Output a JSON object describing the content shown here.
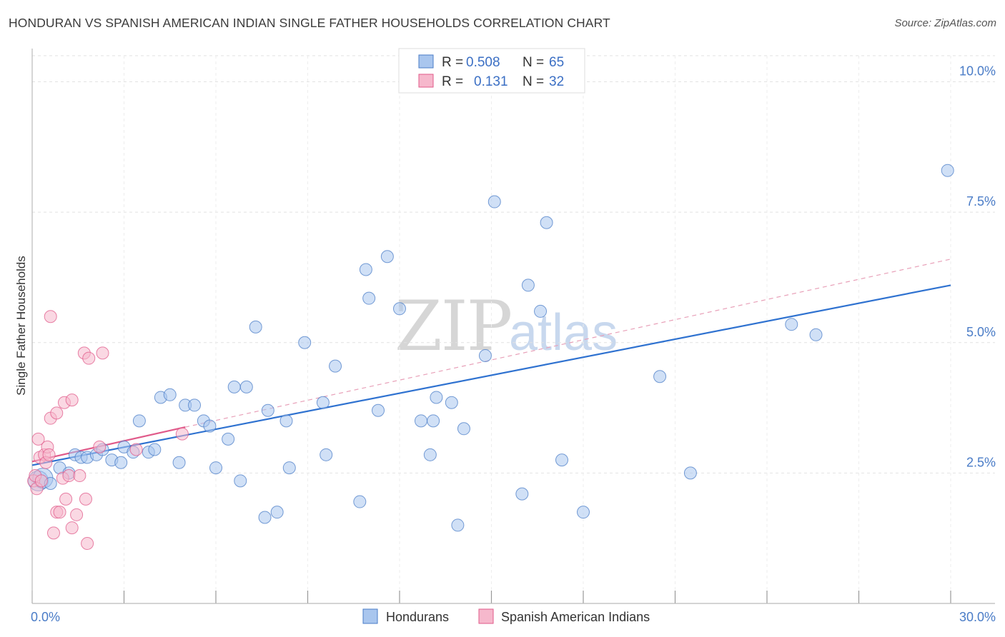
{
  "title": "HONDURAN VS SPANISH AMERICAN INDIAN SINGLE FATHER HOUSEHOLDS CORRELATION CHART",
  "source": "Source: ZipAtlas.com",
  "watermark": {
    "zip": "ZIP",
    "atlas": "atlas"
  },
  "colors": {
    "blue": "#4a7cc7",
    "blue_fill": "#a9c6ee",
    "blue_line": "#2f72d0",
    "pink": "#e05a8a",
    "pink_fill": "#f6b8cc"
  },
  "legend": {
    "rows": [
      {
        "r_label": "R =",
        "r_value": "0.508",
        "n_label": "N =",
        "n_value": "65"
      },
      {
        "r_label": "R =",
        "r_value": "0.131",
        "n_label": "N =",
        "n_value": "32"
      }
    ]
  },
  "bottom_legend": {
    "hondurans": "Hondurans",
    "spanish": "Spanish American Indians"
  },
  "chart_data": {
    "type": "scatter",
    "title": "HONDURAN VS SPANISH AMERICAN INDIAN SINGLE FATHER HOUSEHOLDS CORRELATION CHART",
    "xlabel": "",
    "ylabel": "Single Father Households",
    "xlim": [
      0,
      30
    ],
    "ylim": [
      0,
      10.5
    ],
    "x_tick_labels": {
      "min": "0.0%",
      "max": "30.0%"
    },
    "y_ticks": [
      {
        "value": 2.5,
        "label": "2.5%"
      },
      {
        "value": 5.0,
        "label": "5.0%"
      },
      {
        "value": 7.5,
        "label": "7.5%"
      },
      {
        "value": 10.0,
        "label": "10.0%"
      }
    ],
    "series": [
      {
        "name": "Hondurans",
        "r": 0.508,
        "n": 65,
        "trend": {
          "x0": 0,
          "y0": 2.65,
          "x1": 30,
          "y1": 6.1,
          "style": "solid"
        },
        "points": [
          [
            0.2,
            2.35
          ],
          [
            0.35,
            2.4
          ],
          [
            0.6,
            2.3
          ],
          [
            0.9,
            2.6
          ],
          [
            1.2,
            2.5
          ],
          [
            1.4,
            2.85
          ],
          [
            1.6,
            2.8
          ],
          [
            1.8,
            2.8
          ],
          [
            2.1,
            2.85
          ],
          [
            2.3,
            2.95
          ],
          [
            2.6,
            2.75
          ],
          [
            2.9,
            2.7
          ],
          [
            3.0,
            3.0
          ],
          [
            3.3,
            2.9
          ],
          [
            3.5,
            3.5
          ],
          [
            3.8,
            2.9
          ],
          [
            4.0,
            2.95
          ],
          [
            4.2,
            3.95
          ],
          [
            4.5,
            4.0
          ],
          [
            4.8,
            2.7
          ],
          [
            5.0,
            3.8
          ],
          [
            5.3,
            3.8
          ],
          [
            5.6,
            3.5
          ],
          [
            5.8,
            3.4
          ],
          [
            6.0,
            2.6
          ],
          [
            6.4,
            3.15
          ],
          [
            6.6,
            4.15
          ],
          [
            6.8,
            2.35
          ],
          [
            7.0,
            4.15
          ],
          [
            7.3,
            5.3
          ],
          [
            7.6,
            1.65
          ],
          [
            7.7,
            3.7
          ],
          [
            8.0,
            1.75
          ],
          [
            8.3,
            3.5
          ],
          [
            8.4,
            2.6
          ],
          [
            8.9,
            5.0
          ],
          [
            9.5,
            3.85
          ],
          [
            9.6,
            2.85
          ],
          [
            9.9,
            4.55
          ],
          [
            10.7,
            1.95
          ],
          [
            10.9,
            6.4
          ],
          [
            11.0,
            5.85
          ],
          [
            11.3,
            3.7
          ],
          [
            11.6,
            6.65
          ],
          [
            12.0,
            5.65
          ],
          [
            12.7,
            3.5
          ],
          [
            13.0,
            2.85
          ],
          [
            13.1,
            3.5
          ],
          [
            13.2,
            3.95
          ],
          [
            13.7,
            3.85
          ],
          [
            13.9,
            1.5
          ],
          [
            14.1,
            3.35
          ],
          [
            14.8,
            4.75
          ],
          [
            15.1,
            7.7
          ],
          [
            16.0,
            2.1
          ],
          [
            16.2,
            6.1
          ],
          [
            16.6,
            5.6
          ],
          [
            16.8,
            7.3
          ],
          [
            17.3,
            2.75
          ],
          [
            18.0,
            1.75
          ],
          [
            20.5,
            4.35
          ],
          [
            21.5,
            2.5
          ],
          [
            24.8,
            5.35
          ],
          [
            25.6,
            5.15
          ],
          [
            29.9,
            8.3
          ]
        ]
      },
      {
        "name": "Spanish American Indians",
        "r": 0.131,
        "n": 32,
        "trend": {
          "x0": 0,
          "y0": 2.72,
          "x1": 5.0,
          "y1": 3.38,
          "style": "solid",
          "extended": {
            "x1": 30,
            "y1": 6.6,
            "style": "dashed"
          }
        },
        "points": [
          [
            0.05,
            2.35
          ],
          [
            0.1,
            2.45
          ],
          [
            0.15,
            2.2
          ],
          [
            0.2,
            3.15
          ],
          [
            0.25,
            2.8
          ],
          [
            0.3,
            2.35
          ],
          [
            0.4,
            2.85
          ],
          [
            0.45,
            2.7
          ],
          [
            0.5,
            3.0
          ],
          [
            0.55,
            2.85
          ],
          [
            0.6,
            3.55
          ],
          [
            0.6,
            5.5
          ],
          [
            0.7,
            1.35
          ],
          [
            0.8,
            3.65
          ],
          [
            0.8,
            1.75
          ],
          [
            0.9,
            1.75
          ],
          [
            1.0,
            2.4
          ],
          [
            1.05,
            3.85
          ],
          [
            1.1,
            2.0
          ],
          [
            1.2,
            2.45
          ],
          [
            1.3,
            3.9
          ],
          [
            1.3,
            1.45
          ],
          [
            1.45,
            1.7
          ],
          [
            1.55,
            2.45
          ],
          [
            1.7,
            4.8
          ],
          [
            1.75,
            2.0
          ],
          [
            1.8,
            1.15
          ],
          [
            1.85,
            4.7
          ],
          [
            2.2,
            3.0
          ],
          [
            2.3,
            4.8
          ],
          [
            3.4,
            2.95
          ],
          [
            4.9,
            3.25
          ]
        ]
      }
    ]
  }
}
